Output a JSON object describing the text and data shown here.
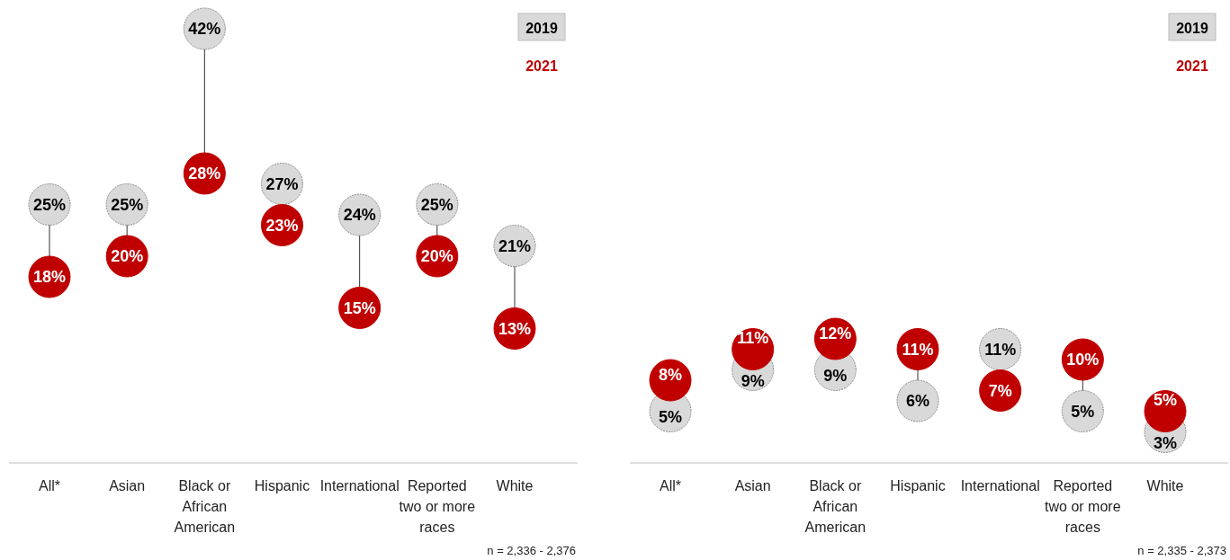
{
  "chart_data": [
    {
      "type": "scatter",
      "categories": [
        "All*",
        "Asian",
        "Black or African American",
        "Hispanic",
        "International",
        "Reported two or more races",
        "White"
      ],
      "legend": "top right",
      "marker": "circle",
      "series": [
        {
          "name": "2019",
          "color": "#d9d9d9",
          "values": [
            25,
            25,
            42,
            27,
            24,
            25,
            21
          ],
          "value_labels": [
            "25%",
            "25%",
            "42%",
            "27%",
            "24%",
            "25%",
            "21%"
          ]
        },
        {
          "name": "2021",
          "color": "#c00000",
          "values": [
            18,
            20,
            28,
            23,
            15,
            20,
            13
          ],
          "value_labels": [
            "18%",
            "20%",
            "28%",
            "23%",
            "15%",
            "20%",
            "13%"
          ]
        }
      ],
      "annotations": [
        "n = 2,336 - 2,376"
      ]
    },
    {
      "type": "scatter",
      "categories": [
        "All*",
        "Asian",
        "Black or African American",
        "Hispanic",
        "International",
        "Reported two or more races",
        "White"
      ],
      "legend": "top right",
      "marker": "circle",
      "series": [
        {
          "name": "2019",
          "color": "#d9d9d9",
          "values": [
            5,
            9,
            9,
            6,
            11,
            5,
            3
          ],
          "value_labels": [
            "5%",
            "9%",
            "9%",
            "6%",
            "11%",
            "5%",
            "3%"
          ]
        },
        {
          "name": "2021",
          "color": "#c00000",
          "values": [
            8,
            11,
            12,
            11,
            7,
            10,
            5
          ],
          "value_labels": [
            "8%",
            "11%",
            "12%",
            "11%",
            "7%",
            "10%",
            "5%"
          ]
        }
      ],
      "annotations": [
        "n = 2,335 - 2,373"
      ]
    }
  ]
}
